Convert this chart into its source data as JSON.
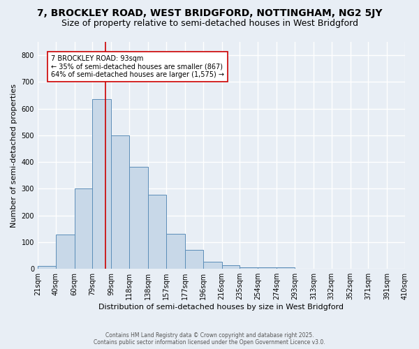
{
  "title1": "7, BROCKLEY ROAD, WEST BRIDGFORD, NOTTINGHAM, NG2 5JY",
  "title2": "Size of property relative to semi-detached houses in West Bridgford",
  "xlabel": "Distribution of semi-detached houses by size in West Bridgford",
  "ylabel": "Number of semi-detached properties",
  "bin_edges": [
    21,
    40,
    60,
    79,
    99,
    118,
    138,
    157,
    177,
    196,
    216,
    235,
    254,
    274,
    293,
    313,
    332,
    352,
    371,
    391,
    410
  ],
  "bar_heights": [
    10,
    128,
    300,
    635,
    500,
    383,
    278,
    132,
    70,
    27,
    13,
    7,
    5,
    5,
    0,
    0,
    0,
    0,
    0,
    0
  ],
  "bar_color": "#c8d8e8",
  "bar_edge_color": "#5b8db8",
  "vline_x": 93,
  "vline_color": "#cc0000",
  "annotation_title": "7 BROCKLEY ROAD: 93sqm",
  "annotation_line1": "← 35% of semi-detached houses are smaller (867)",
  "annotation_line2": "64% of semi-detached houses are larger (1,575) →",
  "annotation_box_color": "#ffffff",
  "annotation_box_edge": "#cc0000",
  "footnote1": "Contains HM Land Registry data © Crown copyright and database right 2025.",
  "footnote2": "Contains public sector information licensed under the Open Government Licence v3.0.",
  "ylim": [
    0,
    850
  ],
  "background_color": "#e8eef5",
  "grid_color": "#ffffff",
  "title1_fontsize": 10,
  "title2_fontsize": 9
}
